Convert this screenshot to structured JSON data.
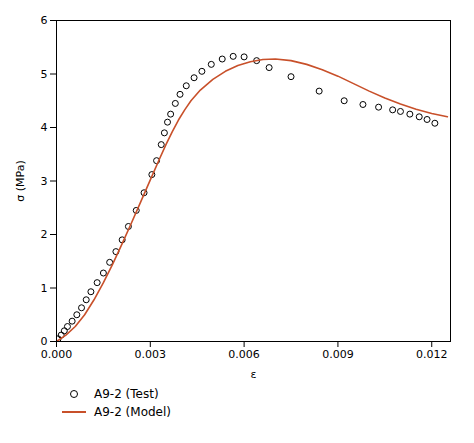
{
  "chart_data": {
    "type": "line",
    "xlabel": "ε",
    "ylabel": "σ (MPa)",
    "xlim": [
      0.0,
      0.0126
    ],
    "ylim": [
      0.0,
      6.0
    ],
    "xticks": [
      {
        "value": 0.0,
        "label": "0.000"
      },
      {
        "value": 0.003,
        "label": "0.003"
      },
      {
        "value": 0.006,
        "label": "0.006"
      },
      {
        "value": 0.009,
        "label": "0.009"
      },
      {
        "value": 0.012,
        "label": "0.012"
      }
    ],
    "yticks": [
      0,
      1,
      2,
      3,
      4,
      5,
      6
    ],
    "grid": false,
    "legend": "below",
    "series": [
      {
        "name": "A9-2 (Test)",
        "type": "scatter",
        "marker": "circle",
        "color": "#000000",
        "x": [
          5e-05,
          0.00015,
          0.00025,
          0.00035,
          0.0005,
          0.00065,
          0.0008,
          0.00095,
          0.0011,
          0.0013,
          0.0015,
          0.0017,
          0.0019,
          0.0021,
          0.0023,
          0.00255,
          0.0028,
          0.00305,
          0.0032,
          0.00335,
          0.00345,
          0.00355,
          0.00365,
          0.0038,
          0.00395,
          0.00415,
          0.0044,
          0.00465,
          0.00495,
          0.0053,
          0.00565,
          0.006,
          0.0064,
          0.0068,
          0.0075,
          0.0084,
          0.0092,
          0.0098,
          0.0103,
          0.01075,
          0.011,
          0.0113,
          0.0116,
          0.01185,
          0.0121
        ],
        "values": [
          0.05,
          0.12,
          0.2,
          0.28,
          0.38,
          0.5,
          0.63,
          0.78,
          0.93,
          1.1,
          1.28,
          1.48,
          1.68,
          1.9,
          2.15,
          2.45,
          2.78,
          3.12,
          3.38,
          3.68,
          3.9,
          4.1,
          4.25,
          4.45,
          4.62,
          4.78,
          4.93,
          5.05,
          5.18,
          5.28,
          5.33,
          5.32,
          5.25,
          5.12,
          4.95,
          4.68,
          4.5,
          4.43,
          4.38,
          4.33,
          4.3,
          4.25,
          4.2,
          4.15,
          4.08
        ]
      },
      {
        "name": "A9-2 (Model)",
        "type": "line",
        "line_style": "solid",
        "color": "#c8502a",
        "x": [
          0.0,
          0.0003,
          0.0006,
          0.0009,
          0.0012,
          0.0015,
          0.0018,
          0.0021,
          0.0024,
          0.0027,
          0.003,
          0.0033,
          0.0035,
          0.0037,
          0.0039,
          0.0041,
          0.0043,
          0.0046,
          0.005,
          0.0054,
          0.0058,
          0.0062,
          0.0066,
          0.007,
          0.0075,
          0.008,
          0.0085,
          0.009,
          0.0095,
          0.01,
          0.0105,
          0.011,
          0.0115,
          0.012,
          0.0125
        ],
        "values": [
          0.0,
          0.12,
          0.28,
          0.5,
          0.78,
          1.1,
          1.45,
          1.83,
          2.22,
          2.62,
          3.02,
          3.42,
          3.68,
          3.92,
          4.14,
          4.33,
          4.5,
          4.7,
          4.9,
          5.05,
          5.16,
          5.23,
          5.27,
          5.28,
          5.25,
          5.18,
          5.08,
          4.96,
          4.82,
          4.68,
          4.55,
          4.44,
          4.34,
          4.26,
          4.2
        ]
      }
    ]
  }
}
